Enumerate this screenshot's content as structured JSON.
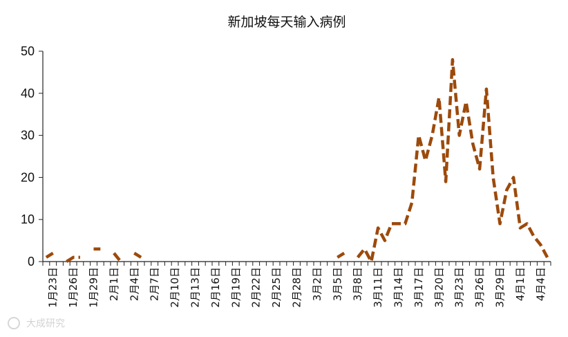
{
  "chart_data": {
    "type": "line",
    "title": "新加坡每天输入病例",
    "ylim": [
      0,
      50
    ],
    "yticks": [
      0,
      10,
      20,
      30,
      40,
      50
    ],
    "grid": false,
    "line_color": "#9C4A0C",
    "line_style": "dashed",
    "x": [
      "1月22日",
      "1月23日",
      "1月24日",
      "1月25日",
      "1月26日",
      "1月27日",
      "1月28日",
      "1月29日",
      "1月30日",
      "1月31日",
      "2月1日",
      "2月2日",
      "2月3日",
      "2月4日",
      "2月5日",
      "2月6日",
      "2月7日",
      "2月8日",
      "2月9日",
      "2月10日",
      "2月11日",
      "2月12日",
      "2月13日",
      "2月14日",
      "2月15日",
      "2月16日",
      "2月17日",
      "2月18日",
      "2月19日",
      "2月20日",
      "2月21日",
      "2月22日",
      "2月23日",
      "2月24日",
      "2月25日",
      "2月26日",
      "2月27日",
      "2月28日",
      "2月29日",
      "3月1日",
      "3月2日",
      "3月3日",
      "3月4日",
      "3月5日",
      "3月6日",
      "3月7日",
      "3月8日",
      "3月9日",
      "3月10日",
      "3月11日",
      "3月12日",
      "3月13日",
      "3月14日",
      "3月15日",
      "3月16日",
      "3月17日",
      "3月18日",
      "3月19日",
      "3月20日",
      "3月21日",
      "3月22日",
      "3月23日",
      "3月24日",
      "3月25日",
      "3月26日",
      "3月27日",
      "3月28日",
      "3月29日",
      "3月30日",
      "3月31日",
      "4月1日",
      "4月2日",
      "4月3日",
      "4月4日",
      "4月5日"
    ],
    "tick_labels": [
      "1月23日",
      "1月26日",
      "1月29日",
      "2月1日",
      "2月4日",
      "2月7日",
      "2月10日",
      "2月13日",
      "2月16日",
      "2月19日",
      "2月22日",
      "2月25日",
      "2月28日",
      "3月2日",
      "3月5日",
      "3月8日",
      "3月11日",
      "3月14日",
      "3月17日",
      "3月20日",
      "3月23日",
      "3月26日",
      "3月29日",
      "4月1日",
      "4月4日"
    ],
    "series": [
      {
        "values": [
          1,
          2,
          null,
          0,
          1,
          1,
          null,
          3,
          3,
          null,
          2,
          0,
          null,
          2,
          1,
          null,
          null,
          null,
          null,
          null,
          null,
          null,
          null,
          null,
          null,
          null,
          null,
          null,
          null,
          null,
          null,
          null,
          null,
          null,
          null,
          null,
          null,
          null,
          null,
          null,
          null,
          null,
          null,
          1,
          2,
          null,
          1,
          3,
          0,
          8,
          5,
          9,
          9,
          9,
          14,
          30,
          24,
          30,
          39,
          19,
          48,
          30,
          38,
          28,
          22,
          41,
          20,
          9,
          17,
          20,
          8,
          9,
          6,
          4,
          1
        ]
      }
    ]
  },
  "watermark": {
    "icon": "logo-icon",
    "text": "大成研究"
  }
}
